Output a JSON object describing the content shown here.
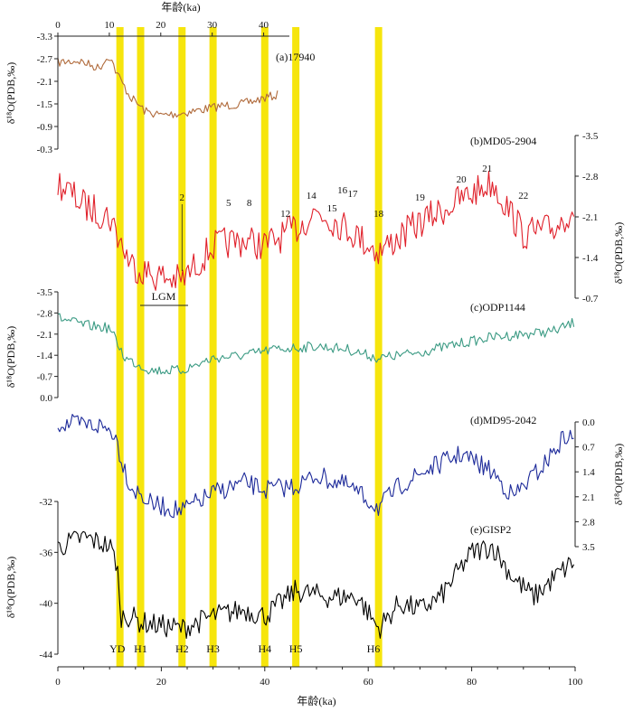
{
  "chart_data": {
    "type": "line",
    "x_axis": {
      "label": "年龄(ka)",
      "bottom_range": [
        0,
        100
      ],
      "bottom_ticks": [
        0,
        20,
        40,
        60,
        80,
        100
      ],
      "top_range": [
        0,
        45
      ],
      "top_ticks": [
        0,
        10,
        20,
        30,
        40
      ]
    },
    "yellow_bands_ka": [
      12,
      16,
      24,
      30,
      40,
      46,
      62
    ],
    "events": [
      "YD",
      "H1",
      "H2",
      "H3",
      "H4",
      "H5",
      "H6"
    ],
    "lgm_label": "LGM",
    "lgm_range_ka": [
      16,
      25
    ],
    "mis_labels": [
      "2",
      "5",
      "8",
      "12",
      "14",
      "15",
      "16",
      "17",
      "18",
      "19",
      "20",
      "21",
      "22"
    ],
    "mis_positions_ka": [
      24,
      33,
      37,
      44,
      49,
      53,
      55,
      57,
      62,
      70,
      78,
      83,
      90
    ],
    "series": [
      {
        "name": "(a)17940",
        "color": "#b06a3b",
        "ylabel": "δ¹⁸O(PDB,‰)",
        "axis_side": "left",
        "ticks": [
          "-3.3",
          "-2.7",
          "-2.1",
          "-1.5",
          "-0.9",
          "-0.3"
        ],
        "range": [
          -3.3,
          -0.3
        ],
        "inverted": true,
        "x_max": 43,
        "anchors": [
          [
            0,
            -2.6
          ],
          [
            4,
            -2.65
          ],
          [
            8,
            -2.45
          ],
          [
            10,
            -2.8
          ],
          [
            11.5,
            -2.3
          ],
          [
            14,
            -1.7
          ],
          [
            17,
            -1.3
          ],
          [
            20,
            -1.2
          ],
          [
            24,
            -1.25
          ],
          [
            28,
            -1.35
          ],
          [
            32,
            -1.45
          ],
          [
            36,
            -1.5
          ],
          [
            40,
            -1.65
          ],
          [
            43,
            -1.75
          ]
        ],
        "noise": 0.12
      },
      {
        "name": "(b)MD05-2904",
        "color": "#e0202a",
        "ylabel": "δ¹⁸O(PDB,‰)",
        "axis_side": "right",
        "ticks": [
          "-3.5",
          "-2.8",
          "-2.1",
          "-1.4",
          "-0.7"
        ],
        "range": [
          -3.5,
          -0.7
        ],
        "inverted": true,
        "x_max": 100,
        "anchors": [
          [
            0,
            -2.7
          ],
          [
            5,
            -2.3
          ],
          [
            10,
            -2.1
          ],
          [
            14,
            -1.3
          ],
          [
            18,
            -1.1
          ],
          [
            24,
            -1.0
          ],
          [
            30,
            -1.6
          ],
          [
            36,
            -1.7
          ],
          [
            40,
            -1.6
          ],
          [
            46,
            -1.9
          ],
          [
            50,
            -2.2
          ],
          [
            56,
            -1.9
          ],
          [
            62,
            -1.5
          ],
          [
            70,
            -2.0
          ],
          [
            78,
            -2.4
          ],
          [
            84,
            -2.7
          ],
          [
            90,
            -1.8
          ],
          [
            96,
            -1.9
          ],
          [
            100,
            -2.3
          ]
        ],
        "noise": 0.28
      },
      {
        "name": "(c)ODP1144",
        "color": "#3a9a83",
        "ylabel": "δ¹⁸O(PDB,‰)",
        "axis_side": "left",
        "ticks": [
          "-3.5",
          "-2.8",
          "-2.1",
          "-1.4",
          "-0.7",
          "0.0"
        ],
        "range": [
          -3.5,
          0.0
        ],
        "inverted": true,
        "x_max": 100,
        "anchors": [
          [
            0,
            -2.65
          ],
          [
            5,
            -2.4
          ],
          [
            10,
            -2.3
          ],
          [
            13,
            -1.3
          ],
          [
            18,
            -0.9
          ],
          [
            24,
            -0.9
          ],
          [
            30,
            -1.3
          ],
          [
            36,
            -1.4
          ],
          [
            42,
            -1.6
          ],
          [
            50,
            -1.7
          ],
          [
            56,
            -1.6
          ],
          [
            62,
            -1.3
          ],
          [
            70,
            -1.5
          ],
          [
            78,
            -1.8
          ],
          [
            84,
            -2.0
          ],
          [
            90,
            -2.1
          ],
          [
            96,
            -2.2
          ],
          [
            100,
            -2.5
          ]
        ],
        "noise": 0.17
      },
      {
        "name": "(d)MD95-2042",
        "color": "#1d2a9a",
        "ylabel": "δ¹⁸O(PDB,‰)",
        "axis_side": "right",
        "ticks": [
          "0.0",
          "0.7",
          "1.4",
          "2.1",
          "2.8",
          "3.5"
        ],
        "range": [
          0.0,
          3.5
        ],
        "inverted": false,
        "x_max": 100,
        "anchors": [
          [
            0,
            0.05
          ],
          [
            8,
            0.1
          ],
          [
            11,
            0.3
          ],
          [
            12,
            0.9
          ],
          [
            14,
            1.8
          ],
          [
            18,
            2.3
          ],
          [
            24,
            2.5
          ],
          [
            30,
            2.0
          ],
          [
            36,
            1.7
          ],
          [
            40,
            1.9
          ],
          [
            46,
            1.8
          ],
          [
            50,
            1.5
          ],
          [
            56,
            1.8
          ],
          [
            62,
            2.4
          ],
          [
            66,
            1.8
          ],
          [
            72,
            1.3
          ],
          [
            78,
            0.9
          ],
          [
            84,
            1.4
          ],
          [
            88,
            2.1
          ],
          [
            94,
            1.2
          ],
          [
            98,
            0.4
          ],
          [
            100,
            0.5
          ]
        ],
        "noise": 0.28
      },
      {
        "name": "(e)GISP2",
        "color": "#000000",
        "ylabel": "δ¹⁸O(PDB,‰)",
        "axis_side": "left",
        "ticks": [
          "-32",
          "-36",
          "-40",
          "-44"
        ],
        "range": [
          -44,
          -32
        ],
        "inverted": false,
        "x_max": 100,
        "anchors": [
          [
            0,
            -35.6
          ],
          [
            5,
            -34.8
          ],
          [
            10,
            -35.5
          ],
          [
            11.5,
            -37
          ],
          [
            12,
            -41
          ],
          [
            14,
            -41
          ],
          [
            16,
            -41.5
          ],
          [
            24,
            -42
          ],
          [
            30,
            -41
          ],
          [
            36,
            -40.5
          ],
          [
            40,
            -41
          ],
          [
            46,
            -39
          ],
          [
            52,
            -39.5
          ],
          [
            58,
            -39.5
          ],
          [
            62,
            -42
          ],
          [
            66,
            -40
          ],
          [
            70,
            -40.5
          ],
          [
            74,
            -39.5
          ],
          [
            80,
            -36
          ],
          [
            84,
            -35.5
          ],
          [
            88,
            -38
          ],
          [
            92,
            -39.5
          ],
          [
            96,
            -38
          ],
          [
            100,
            -36.6
          ]
        ],
        "noise": 0.9
      }
    ]
  }
}
